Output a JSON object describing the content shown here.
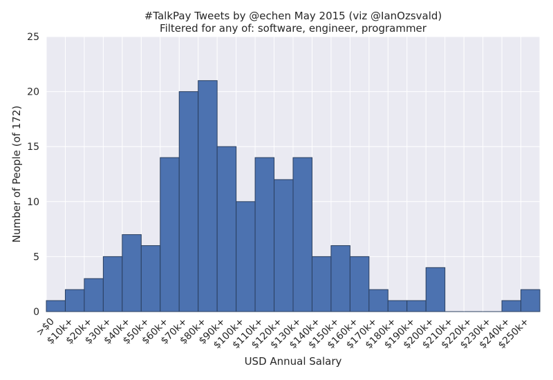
{
  "chart_data": {
    "type": "bar",
    "title": "#TalkPay Tweets by @echen May 2015 (viz @IanOzsvald)",
    "subtitle": "Filtered for any of: software, engineer, programmer",
    "xlabel": "USD Annual Salary",
    "ylabel": "Number of People (of 172)",
    "ylim": [
      0,
      25
    ],
    "yticks": [
      "0",
      "5",
      "10",
      "15",
      "20",
      "25"
    ],
    "categories": [
      ">$0",
      "$10k+",
      "$20k+",
      "$30k+",
      "$40k+",
      "$50k+",
      "$60k+",
      "$70k+",
      "$80k+",
      "$90k+",
      "$100k+",
      "$110k+",
      "$120k+",
      "$130k+",
      "$140k+",
      "$150k+",
      "$160k+",
      "$170k+",
      "$180k+",
      "$190k+",
      "$200k+",
      "$210k+",
      "$220k+",
      "$230k+",
      "$240k+",
      "$250k+"
    ],
    "values": [
      1,
      2,
      3,
      5,
      7,
      6,
      14,
      20,
      21,
      15,
      10,
      14,
      12,
      14,
      5,
      6,
      5,
      2,
      1,
      1,
      4,
      0,
      0,
      0,
      1,
      2
    ],
    "grid": true,
    "bar_color": "#4c72b0",
    "background_color": "#eaeaf2"
  }
}
